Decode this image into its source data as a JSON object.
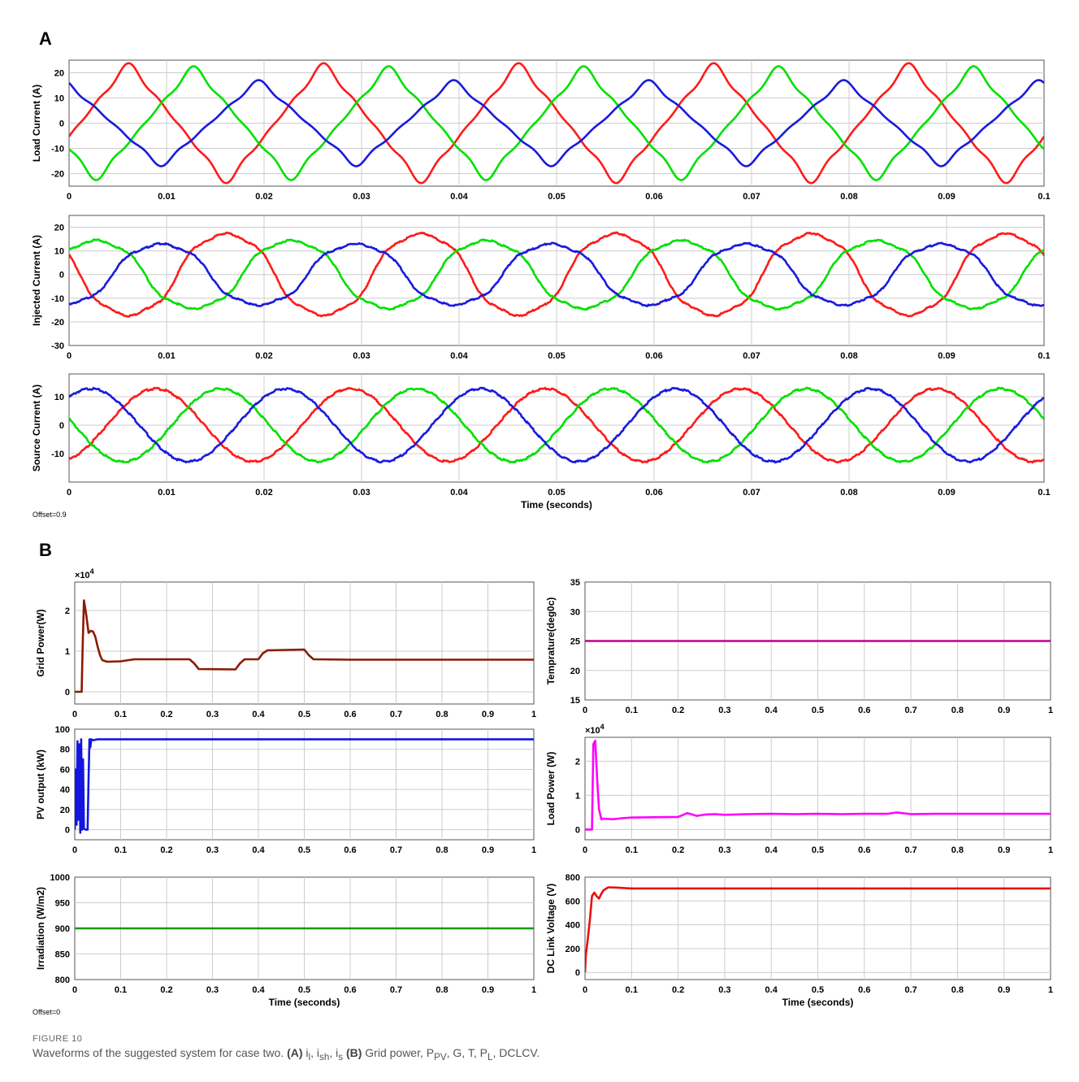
{
  "figure": {
    "offset_a": "Offset=0.9",
    "offset_b": "Offset=0",
    "caption_label": "FIGURE 10",
    "caption_text": "Waveforms of the suggested system for case two. (A) i",
    "caption": {
      "lead": "Waveforms of the suggested system for case two. ",
      "a_label": "(A)",
      "a_items": [
        {
          "base": "i",
          "sub": "l"
        },
        {
          "base": "i",
          "sub": "sh"
        },
        {
          "base": "i",
          "sub": "s"
        }
      ],
      "b_label": "(B)",
      "b_text_1": " Grid power, P",
      "b_sub_1": "PV",
      "b_text_2": ", G, T, P",
      "b_sub_2": "L",
      "b_text_3": ", DCLCV."
    }
  },
  "colors": {
    "phase_a": "#ff1a1a",
    "phase_b": "#00e000",
    "phase_c": "#1a1adc",
    "grid_power": "#8b1a00",
    "pv_output": "#1515e0",
    "irradiation": "#1a9a00",
    "temperature": "#c0008a",
    "load_power": "#ff00ff",
    "dc_link": "#e81010",
    "grid": "#cccccc"
  },
  "chart_data": [
    {
      "panel": "A",
      "type": "line",
      "ylabel": "Load Current (A)",
      "xlim": [
        0,
        0.1
      ],
      "ylim": [
        -25,
        25
      ],
      "yticks": [
        20,
        10,
        0,
        -10,
        -20
      ],
      "xticks": [
        "0",
        "0.01",
        "0.02",
        "0.03",
        "0.04",
        "0.05",
        "0.06",
        "0.07",
        "0.08",
        "0.09",
        "0.1"
      ],
      "frequency_hz": 50,
      "series": [
        {
          "color_key": "phase_a",
          "amplitude": 19.5,
          "phase_deg": -20,
          "distortion": "nonlinear-load"
        },
        {
          "color_key": "phase_b",
          "amplitude": 18.5,
          "phase_deg": -140,
          "distortion": "nonlinear-load"
        },
        {
          "color_key": "phase_c",
          "amplitude": 14,
          "phase_deg": 100,
          "distortion": "nonlinear-load"
        }
      ]
    },
    {
      "panel": "A",
      "type": "line",
      "ylabel": "Injected Current (A)",
      "xlim": [
        0,
        0.1
      ],
      "ylim": [
        -30,
        25
      ],
      "yticks": [
        20,
        10,
        0,
        -10,
        -20,
        -30
      ],
      "xticks": [
        "0",
        "0.01",
        "0.02",
        "0.03",
        "0.04",
        "0.05",
        "0.06",
        "0.07",
        "0.08",
        "0.09",
        "0.1"
      ],
      "frequency_hz": 50,
      "series": [
        {
          "color_key": "phase_a",
          "amplitude": 18,
          "phase_deg": 160,
          "distortion": "compensating"
        },
        {
          "color_key": "phase_b",
          "amplitude": 15,
          "phase_deg": 40,
          "distortion": "compensating"
        },
        {
          "color_key": "phase_c",
          "amplitude": 13.5,
          "phase_deg": -80,
          "distortion": "compensating"
        }
      ]
    },
    {
      "panel": "A",
      "type": "line",
      "ylabel": "Source Current (A)",
      "xlabel": "Time (seconds)",
      "xlim": [
        0,
        0.1
      ],
      "ylim": [
        -20,
        18
      ],
      "yticks": [
        10,
        0,
        -10
      ],
      "xticks": [
        "0",
        "0.01",
        "0.02",
        "0.03",
        "0.04",
        "0.05",
        "0.06",
        "0.07",
        "0.08",
        "0.09",
        "0.1"
      ],
      "frequency_hz": 50,
      "series": [
        {
          "color_key": "phase_a",
          "amplitude": 12.8,
          "phase_deg": -70,
          "distortion": "sinusoidal"
        },
        {
          "color_key": "phase_b",
          "amplitude": 12.8,
          "phase_deg": 170,
          "distortion": "sinusoidal"
        },
        {
          "color_key": "phase_c",
          "amplitude": 12.8,
          "phase_deg": 50,
          "distortion": "sinusoidal"
        }
      ]
    },
    {
      "panel": "B",
      "type": "line",
      "ylabel": "Grid Power(W)",
      "exponent_label": "×10",
      "exponent_power": "4",
      "xlim": [
        0,
        1
      ],
      "ylim": [
        -0.3,
        2.7
      ],
      "yticks": [
        "0",
        "1",
        "2"
      ],
      "xticks": [
        "0",
        "0.1",
        "0.2",
        "0.3",
        "0.4",
        "0.5",
        "0.6",
        "0.7",
        "0.8",
        "0.9",
        "1"
      ],
      "series": [
        {
          "color_key": "grid_power",
          "x": [
            0,
            0.015,
            0.017,
            0.02,
            0.025,
            0.03,
            0.035,
            0.04,
            0.045,
            0.05,
            0.055,
            0.06,
            0.07,
            0.1,
            0.13,
            0.25,
            0.26,
            0.27,
            0.35,
            0.36,
            0.37,
            0.4,
            0.41,
            0.42,
            0.5,
            0.51,
            0.52,
            0.6,
            1.0
          ],
          "y": [
            0,
            0,
            1.0,
            2.25,
            1.9,
            1.45,
            1.5,
            1.48,
            1.35,
            1.1,
            0.9,
            0.78,
            0.74,
            0.75,
            0.8,
            0.8,
            0.7,
            0.56,
            0.55,
            0.7,
            0.8,
            0.8,
            0.95,
            1.02,
            1.04,
            0.9,
            0.8,
            0.79,
            0.79
          ]
        }
      ]
    },
    {
      "panel": "B",
      "type": "line",
      "ylabel": "Temprature(deg0c)",
      "xlim": [
        0,
        1
      ],
      "ylim": [
        15,
        35
      ],
      "yticks": [
        "35",
        "30",
        "25",
        "20",
        "15"
      ],
      "xticks": [
        "0",
        "0.1",
        "0.2",
        "0.3",
        "0.4",
        "0.5",
        "0.6",
        "0.7",
        "0.8",
        "0.9",
        "1"
      ],
      "series": [
        {
          "color_key": "temperature",
          "x": [
            0,
            1
          ],
          "y": [
            25,
            25
          ]
        }
      ]
    },
    {
      "panel": "B",
      "type": "line",
      "ylabel": "PV output (kW)",
      "xlim": [
        0,
        1
      ],
      "ylim": [
        -10,
        100
      ],
      "yticks": [
        "100",
        "80",
        "60",
        "40",
        "20",
        "0"
      ],
      "xticks": [
        "0",
        "0.1",
        "0.2",
        "0.3",
        "0.4",
        "0.5",
        "0.6",
        "0.7",
        "0.8",
        "0.9",
        "1"
      ],
      "series": [
        {
          "color_key": "pv_output",
          "x": [
            0,
            0.002,
            0.004,
            0.006,
            0.008,
            0.01,
            0.012,
            0.014,
            0.016,
            0.018,
            0.02,
            0.024,
            0.028,
            0.03,
            0.032,
            0.034,
            0.036,
            0.04,
            0.05,
            0.1,
            1.0
          ],
          "y": [
            0,
            60,
            5,
            88,
            10,
            85,
            -3,
            90,
            0,
            70,
            1,
            0,
            0,
            50,
            90,
            82,
            90,
            89,
            90,
            90,
            90
          ]
        }
      ]
    },
    {
      "panel": "B",
      "type": "line",
      "ylabel": "Load Power (W)",
      "exponent_label": "×10",
      "exponent_power": "4",
      "xlim": [
        0,
        1
      ],
      "ylim": [
        -0.3,
        2.7
      ],
      "yticks": [
        "2",
        "1",
        "0"
      ],
      "xticks": [
        "0",
        "0.1",
        "0.2",
        "0.3",
        "0.4",
        "0.5",
        "0.6",
        "0.7",
        "0.8",
        "0.9",
        "1"
      ],
      "series": [
        {
          "color_key": "load_power",
          "x": [
            0,
            0.015,
            0.018,
            0.022,
            0.026,
            0.03,
            0.035,
            0.04,
            0.06,
            0.08,
            0.1,
            0.2,
            0.22,
            0.24,
            0.26,
            0.28,
            0.3,
            0.35,
            0.4,
            0.45,
            0.5,
            0.55,
            0.6,
            0.65,
            0.67,
            0.7,
            0.75,
            0.8,
            0.9,
            1.0
          ],
          "y": [
            0,
            0,
            2.5,
            2.6,
            1.5,
            0.6,
            0.3,
            0.32,
            0.3,
            0.33,
            0.35,
            0.37,
            0.48,
            0.4,
            0.44,
            0.45,
            0.43,
            0.45,
            0.46,
            0.45,
            0.46,
            0.45,
            0.46,
            0.46,
            0.5,
            0.45,
            0.46,
            0.46,
            0.46,
            0.46
          ]
        }
      ]
    },
    {
      "panel": "B",
      "type": "line",
      "ylabel": "Irradiation (W/m2)",
      "xlabel": "Time (seconds)",
      "xlim": [
        0,
        1
      ],
      "ylim": [
        800,
        1000
      ],
      "yticks": [
        "1000",
        "950",
        "900",
        "850",
        "800"
      ],
      "xticks": [
        "0",
        "0.1",
        "0.2",
        "0.3",
        "0.4",
        "0.5",
        "0.6",
        "0.7",
        "0.8",
        "0.9",
        "1"
      ],
      "series": [
        {
          "color_key": "irradiation",
          "x": [
            0,
            1
          ],
          "y": [
            900,
            900
          ]
        }
      ]
    },
    {
      "panel": "B",
      "type": "line",
      "ylabel": "DC Link Voltage (V)",
      "xlabel": "Time (seconds)",
      "xlim": [
        0,
        1
      ],
      "ylim": [
        -60,
        800
      ],
      "yticks": [
        "800",
        "600",
        "400",
        "200",
        "0"
      ],
      "xticks": [
        "0",
        "0.1",
        "0.2",
        "0.3",
        "0.4",
        "0.5",
        "0.6",
        "0.7",
        "0.8",
        "0.9",
        "1"
      ],
      "series": [
        {
          "color_key": "dc_link",
          "x": [
            0,
            0.002,
            0.005,
            0.01,
            0.015,
            0.02,
            0.025,
            0.03,
            0.035,
            0.04,
            0.05,
            0.07,
            0.1,
            0.2,
            1.0
          ],
          "y": [
            0,
            150,
            250,
            420,
            640,
            670,
            640,
            620,
            660,
            690,
            715,
            712,
            705,
            705,
            705
          ]
        }
      ]
    }
  ]
}
